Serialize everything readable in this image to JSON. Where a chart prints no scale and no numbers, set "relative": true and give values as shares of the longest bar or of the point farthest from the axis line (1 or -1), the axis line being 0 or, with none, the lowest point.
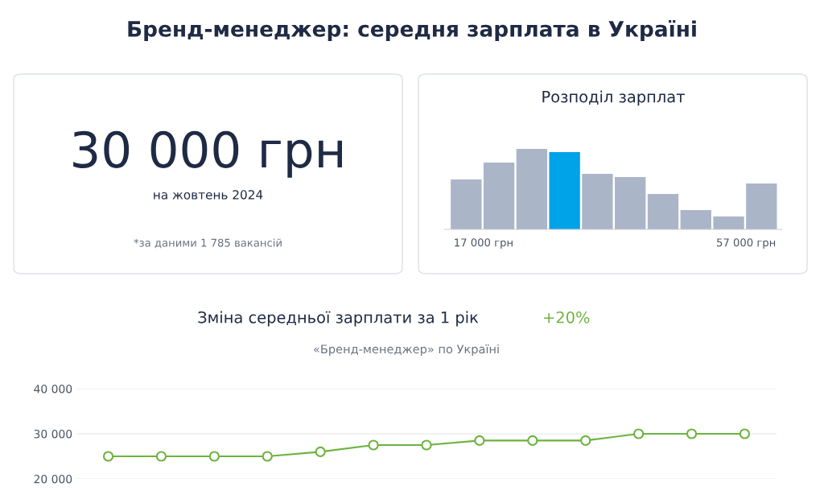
{
  "chart_data": [
    {
      "type": "other",
      "title": "Бренд-менеджер: середня зарплата в Україні",
      "annotations": [
        "30 000 грн",
        "на жовтень 2024",
        "*за даними 1 785 вакансій"
      ]
    },
    {
      "type": "bar",
      "title": "Розподіл зарплат",
      "relative": true,
      "categories": [
        null,
        "17 000 грн",
        null,
        null,
        null,
        null,
        null,
        null,
        null,
        "57 000 грн"
      ],
      "values": [
        0.62,
        0.83,
        1,
        0.96,
        0.69,
        0.65,
        0.44,
        0.24,
        0.16,
        0.57
      ],
      "colors": [
        "#abb5c8",
        "#abb5c8",
        "#abb5c8",
        "#00a2e8",
        "#abb5c8",
        "#abb5c8",
        "#abb5c8",
        "#abb5c8",
        "#abb5c8",
        "#abb5c8"
      ],
      "grid": false
    },
    {
      "type": "line",
      "title": "Зміна середньої зарплати за 1 рік",
      "subtitle": "«Бренд-менеджер» по Україні",
      "annotations": [
        "+20%"
      ],
      "categories": [
        null,
        null,
        null,
        null,
        null,
        null,
        null,
        null,
        null,
        null,
        null,
        null,
        null
      ],
      "series": [
        {
          "color": "#6db33f",
          "values": [
            25000,
            25000,
            25000,
            25000,
            26000,
            27500,
            27500,
            28500,
            28500,
            28500,
            30000,
            30000,
            30000
          ]
        }
      ],
      "ylim": [
        20000,
        40000
      ],
      "yticks": [
        {
          "value": 20000,
          "label": "20 000"
        },
        {
          "value": 30000,
          "label": "30 000"
        },
        {
          "value": 40000,
          "label": "40 000"
        }
      ],
      "grid": "y",
      "marker": "circle",
      "line_style": "solid",
      "tick_labels": "y"
    }
  ]
}
